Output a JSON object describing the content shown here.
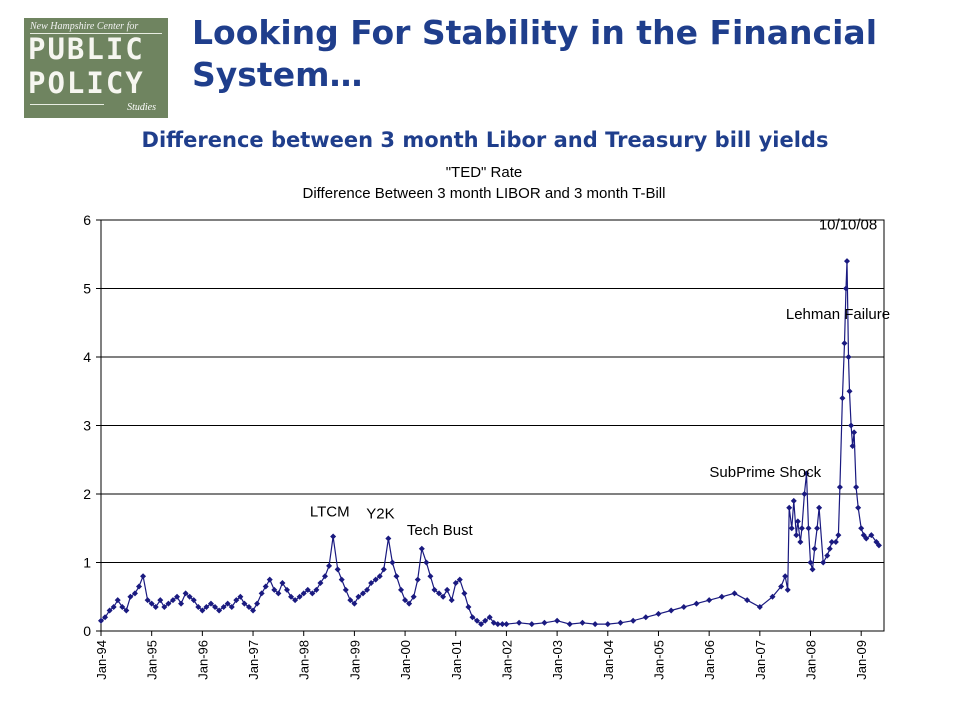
{
  "header": {
    "title": "Looking For Stability in the Financial System…",
    "subtitle": "Difference between 3 month Libor and Treasury bill yields"
  },
  "logo": {
    "tagline": "New Hampshire Center for",
    "line1": "PUBLIC",
    "line2": "POLICY",
    "sub": "Studies"
  },
  "colors": {
    "heading": "#1f3e8c",
    "series": "#1a1a80",
    "logo_bg": "#6f8460"
  },
  "chart_data": {
    "type": "line",
    "title": "\"TED\" Rate",
    "subtitle": "Difference Between 3 month LIBOR and 3 month T-Bill",
    "xlabel": "",
    "ylabel": "",
    "ylim": [
      0,
      6
    ],
    "y_ticks": [
      "0",
      "1",
      "2",
      "3",
      "4",
      "5",
      "6"
    ],
    "x_tick_labels": [
      "Jan-94",
      "Jan-95",
      "Jan-96",
      "Jan-97",
      "Jan-98",
      "Jan-99",
      "Jan-00",
      "Jan-01",
      "Jan-02",
      "Jan-03",
      "Jan-04",
      "Jan-05",
      "Jan-06",
      "Jan-07",
      "Jan-08",
      "Jan-09"
    ],
    "grid": "horizontal",
    "legend": "none",
    "x_range": [
      1994.0,
      2009.45
    ],
    "series": [
      {
        "x": [
          1994.0,
          1994.08,
          1994.17,
          1994.25,
          1994.33,
          1994.42,
          1994.5,
          1994.58,
          1994.67,
          1994.75,
          1994.83,
          1994.92,
          1995.0,
          1995.08,
          1995.17,
          1995.25,
          1995.33,
          1995.42,
          1995.5,
          1995.58,
          1995.67,
          1995.75,
          1995.83,
          1995.92,
          1996.0,
          1996.08,
          1996.17,
          1996.25,
          1996.33,
          1996.42,
          1996.5,
          1996.58,
          1996.67,
          1996.75,
          1996.83,
          1996.92,
          1997.0,
          1997.08,
          1997.17,
          1997.25,
          1997.33,
          1997.42,
          1997.5,
          1997.58,
          1997.67,
          1997.75,
          1997.83,
          1997.92,
          1998.0,
          1998.08,
          1998.17,
          1998.25,
          1998.33,
          1998.42,
          1998.5,
          1998.58,
          1998.67,
          1998.75,
          1998.83,
          1998.92,
          1999.0,
          1999.08,
          1999.17,
          1999.25,
          1999.33,
          1999.42,
          1999.5,
          1999.58,
          1999.67,
          1999.75,
          1999.83,
          1999.92,
          2000.0,
          2000.08,
          2000.17,
          2000.25,
          2000.33,
          2000.42,
          2000.5,
          2000.58,
          2000.67,
          2000.75,
          2000.83,
          2000.92,
          2001.0,
          2001.08,
          2001.17,
          2001.25,
          2001.33,
          2001.42,
          2001.5,
          2001.58,
          2001.67,
          2001.75,
          2001.83,
          2001.92,
          2002.0,
          2002.25,
          2002.5,
          2002.75,
          2003.0,
          2003.25,
          2003.5,
          2003.75,
          2004.0,
          2004.25,
          2004.5,
          2004.75,
          2005.0,
          2005.25,
          2005.5,
          2005.75,
          2006.0,
          2006.25,
          2006.5,
          2006.75,
          2007.0,
          2007.25,
          2007.42,
          2007.5,
          2007.55,
          2007.58,
          2007.63,
          2007.67,
          2007.72,
          2007.75,
          2007.8,
          2007.83,
          2007.88,
          2007.92,
          2007.96,
          2008.0,
          2008.04,
          2008.08,
          2008.13,
          2008.17,
          2008.25,
          2008.33,
          2008.38,
          2008.42,
          2008.5,
          2008.55,
          2008.58,
          2008.63,
          2008.67,
          2008.7,
          2008.72,
          2008.75,
          2008.77,
          2008.8,
          2008.83,
          2008.86,
          2008.9,
          2008.94,
          2009.0,
          2009.05,
          2009.1,
          2009.2,
          2009.3,
          2009.35
        ],
        "y": [
          0.15,
          0.2,
          0.3,
          0.35,
          0.45,
          0.35,
          0.3,
          0.5,
          0.55,
          0.65,
          0.8,
          0.45,
          0.4,
          0.35,
          0.45,
          0.35,
          0.4,
          0.45,
          0.5,
          0.4,
          0.55,
          0.5,
          0.45,
          0.35,
          0.3,
          0.35,
          0.4,
          0.35,
          0.3,
          0.35,
          0.4,
          0.35,
          0.45,
          0.5,
          0.4,
          0.35,
          0.3,
          0.4,
          0.55,
          0.65,
          0.75,
          0.6,
          0.55,
          0.7,
          0.6,
          0.5,
          0.45,
          0.5,
          0.55,
          0.6,
          0.55,
          0.6,
          0.7,
          0.8,
          0.95,
          1.38,
          0.9,
          0.75,
          0.6,
          0.45,
          0.4,
          0.5,
          0.55,
          0.6,
          0.7,
          0.75,
          0.8,
          0.9,
          1.35,
          1.0,
          0.8,
          0.6,
          0.45,
          0.4,
          0.5,
          0.75,
          1.2,
          1.0,
          0.8,
          0.6,
          0.55,
          0.5,
          0.6,
          0.45,
          0.7,
          0.75,
          0.55,
          0.35,
          0.2,
          0.15,
          0.1,
          0.15,
          0.2,
          0.12,
          0.1,
          0.1,
          0.1,
          0.12,
          0.1,
          0.12,
          0.15,
          0.1,
          0.12,
          0.1,
          0.1,
          0.12,
          0.15,
          0.2,
          0.25,
          0.3,
          0.35,
          0.4,
          0.45,
          0.5,
          0.55,
          0.45,
          0.35,
          0.5,
          0.65,
          0.8,
          0.6,
          1.8,
          1.5,
          1.9,
          1.4,
          1.6,
          1.3,
          1.5,
          2.0,
          2.3,
          1.5,
          1.0,
          0.9,
          1.2,
          1.5,
          1.8,
          1.0,
          1.1,
          1.2,
          1.3,
          1.3,
          1.4,
          2.1,
          3.4,
          4.2,
          5.0,
          5.4,
          4.0,
          3.5,
          3.0,
          2.7,
          2.9,
          2.1,
          1.8,
          1.5,
          1.4,
          1.35,
          1.4,
          1.3,
          1.25
        ]
      }
    ],
    "annotations": [
      {
        "text": "LTCM",
        "x": 1998.75,
        "y": 1.38
      },
      {
        "text": "Y2K",
        "x": 1999.75,
        "y": 1.38
      },
      {
        "text": "Tech Bust",
        "x": 2000.33,
        "y": 1.2
      },
      {
        "text": "SubPrime Shock",
        "x": 2007.6,
        "y": 2.0
      },
      {
        "text": "Lehman Failure",
        "x": 2008.7,
        "y": 3.9
      },
      {
        "text": "10/10/08",
        "x": 2008.78,
        "y": 5.45
      }
    ]
  }
}
